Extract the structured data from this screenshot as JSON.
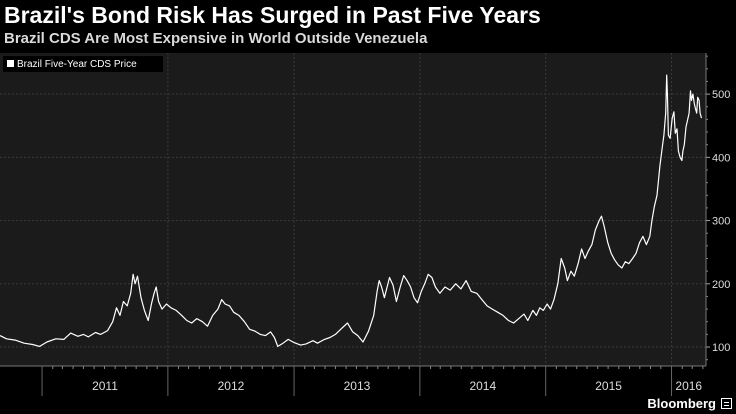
{
  "header": {
    "title": "Brazil's Bond Risk Has Surged in Past Five Years",
    "subtitle": "Brazil CDS Are Most Expensive in World Outside Venezuela"
  },
  "footer": {
    "brand": "Bloomberg"
  },
  "colors": {
    "background": "#000000",
    "plot_background": "#1b1b1b",
    "line": "#ffffff",
    "grid": "#3a3a3a",
    "axis_text": "#dddddd"
  },
  "chart_data": {
    "type": "line",
    "title": "Brazil's Bond Risk Has Surged in Past Five Years",
    "subtitle": "Brazil CDS Are Most Expensive in World Outside Venezuela",
    "legend": {
      "placement": "top-left",
      "entries": [
        "Brazil Five-Year CDS Price"
      ]
    },
    "xlim": [
      "2010-09-01",
      "2016-04-10"
    ],
    "ylim": [
      70,
      565
    ],
    "y_ticks": [
      100,
      200,
      300,
      400,
      500
    ],
    "x_ticks": [
      "2011",
      "2012",
      "2013",
      "2014",
      "2015",
      "2016"
    ],
    "grid": true,
    "series": [
      {
        "name": "Brazil Five-Year CDS Price",
        "points": [
          [
            "2010-09-01",
            118
          ],
          [
            "2010-09-20",
            113
          ],
          [
            "2010-10-15",
            111
          ],
          [
            "2010-11-10",
            106
          ],
          [
            "2010-12-05",
            104
          ],
          [
            "2010-12-25",
            101
          ],
          [
            "2011-01-15",
            108
          ],
          [
            "2011-02-10",
            113
          ],
          [
            "2011-03-05",
            112
          ],
          [
            "2011-03-25",
            122
          ],
          [
            "2011-04-15",
            117
          ],
          [
            "2011-05-01",
            120
          ],
          [
            "2011-05-15",
            116
          ],
          [
            "2011-06-05",
            123
          ],
          [
            "2011-06-20",
            120
          ],
          [
            "2011-07-10",
            126
          ],
          [
            "2011-07-25",
            140
          ],
          [
            "2011-08-05",
            162
          ],
          [
            "2011-08-15",
            150
          ],
          [
            "2011-08-25",
            172
          ],
          [
            "2011-09-05",
            165
          ],
          [
            "2011-09-15",
            185
          ],
          [
            "2011-09-22",
            215
          ],
          [
            "2011-09-28",
            200
          ],
          [
            "2011-10-05",
            212
          ],
          [
            "2011-10-15",
            178
          ],
          [
            "2011-10-25",
            158
          ],
          [
            "2011-11-05",
            142
          ],
          [
            "2011-11-15",
            170
          ],
          [
            "2011-11-22",
            185
          ],
          [
            "2011-11-28",
            195
          ],
          [
            "2011-12-05",
            172
          ],
          [
            "2011-12-15",
            160
          ],
          [
            "2011-12-28",
            168
          ],
          [
            "2012-01-10",
            162
          ],
          [
            "2012-01-25",
            158
          ],
          [
            "2012-02-10",
            150
          ],
          [
            "2012-02-25",
            142
          ],
          [
            "2012-03-10",
            138
          ],
          [
            "2012-03-25",
            145
          ],
          [
            "2012-04-10",
            140
          ],
          [
            "2012-04-25",
            133
          ],
          [
            "2012-05-10",
            150
          ],
          [
            "2012-05-25",
            160
          ],
          [
            "2012-06-05",
            175
          ],
          [
            "2012-06-15",
            168
          ],
          [
            "2012-06-28",
            165
          ],
          [
            "2012-07-10",
            155
          ],
          [
            "2012-07-25",
            150
          ],
          [
            "2012-08-10",
            140
          ],
          [
            "2012-08-25",
            128
          ],
          [
            "2012-09-10",
            125
          ],
          [
            "2012-09-25",
            120
          ],
          [
            "2012-10-10",
            118
          ],
          [
            "2012-10-25",
            124
          ],
          [
            "2012-11-05",
            115
          ],
          [
            "2012-11-15",
            101
          ],
          [
            "2012-11-30",
            106
          ],
          [
            "2012-12-15",
            112
          ],
          [
            "2013-01-01",
            107
          ],
          [
            "2013-01-20",
            103
          ],
          [
            "2013-02-05",
            105
          ],
          [
            "2013-02-25",
            110
          ],
          [
            "2013-03-10",
            106
          ],
          [
            "2013-03-30",
            112
          ],
          [
            "2013-04-15",
            115
          ],
          [
            "2013-05-01",
            120
          ],
          [
            "2013-05-20",
            130
          ],
          [
            "2013-06-05",
            138
          ],
          [
            "2013-06-20",
            124
          ],
          [
            "2013-07-05",
            118
          ],
          [
            "2013-07-20",
            108
          ],
          [
            "2013-08-05",
            125
          ],
          [
            "2013-08-20",
            150
          ],
          [
            "2013-08-30",
            188
          ],
          [
            "2013-09-05",
            205
          ],
          [
            "2013-09-12",
            195
          ],
          [
            "2013-09-20",
            178
          ],
          [
            "2013-10-05",
            210
          ],
          [
            "2013-10-15",
            198
          ],
          [
            "2013-10-25",
            172
          ],
          [
            "2013-11-05",
            195
          ],
          [
            "2013-11-15",
            213
          ],
          [
            "2013-11-25",
            205
          ],
          [
            "2013-12-05",
            195
          ],
          [
            "2013-12-15",
            178
          ],
          [
            "2013-12-25",
            170
          ],
          [
            "2014-01-05",
            188
          ],
          [
            "2014-01-15",
            200
          ],
          [
            "2014-01-25",
            215
          ],
          [
            "2014-02-05",
            210
          ],
          [
            "2014-02-15",
            195
          ],
          [
            "2014-02-28",
            185
          ],
          [
            "2014-03-15",
            195
          ],
          [
            "2014-03-30",
            190
          ],
          [
            "2014-04-15",
            200
          ],
          [
            "2014-04-30",
            192
          ],
          [
            "2014-05-15",
            205
          ],
          [
            "2014-05-30",
            188
          ],
          [
            "2014-06-15",
            185
          ],
          [
            "2014-06-30",
            175
          ],
          [
            "2014-07-15",
            165
          ],
          [
            "2014-07-30",
            160
          ],
          [
            "2014-08-15",
            155
          ],
          [
            "2014-08-30",
            150
          ],
          [
            "2014-09-15",
            142
          ],
          [
            "2014-09-30",
            138
          ],
          [
            "2014-10-15",
            145
          ],
          [
            "2014-10-30",
            152
          ],
          [
            "2014-11-10",
            142
          ],
          [
            "2014-11-25",
            158
          ],
          [
            "2014-12-05",
            150
          ],
          [
            "2014-12-15",
            162
          ],
          [
            "2014-12-25",
            158
          ],
          [
            "2015-01-05",
            168
          ],
          [
            "2015-01-15",
            160
          ],
          [
            "2015-01-25",
            175
          ],
          [
            "2015-02-05",
            200
          ],
          [
            "2015-02-15",
            240
          ],
          [
            "2015-02-25",
            225
          ],
          [
            "2015-03-05",
            205
          ],
          [
            "2015-03-15",
            220
          ],
          [
            "2015-03-25",
            212
          ],
          [
            "2015-04-05",
            232
          ],
          [
            "2015-04-15",
            255
          ],
          [
            "2015-04-25",
            240
          ],
          [
            "2015-05-05",
            252
          ],
          [
            "2015-05-15",
            262
          ],
          [
            "2015-05-25",
            285
          ],
          [
            "2015-06-05",
            300
          ],
          [
            "2015-06-12",
            307
          ],
          [
            "2015-06-20",
            290
          ],
          [
            "2015-06-30",
            265
          ],
          [
            "2015-07-10",
            248
          ],
          [
            "2015-07-20",
            238
          ],
          [
            "2015-07-30",
            230
          ],
          [
            "2015-08-10",
            225
          ],
          [
            "2015-08-20",
            235
          ],
          [
            "2015-08-30",
            232
          ],
          [
            "2015-09-10",
            240
          ],
          [
            "2015-09-20",
            248
          ],
          [
            "2015-09-30",
            265
          ],
          [
            "2015-10-10",
            275
          ],
          [
            "2015-10-20",
            262
          ],
          [
            "2015-10-30",
            275
          ],
          [
            "2015-11-05",
            300
          ],
          [
            "2015-11-12",
            322
          ],
          [
            "2015-11-20",
            340
          ],
          [
            "2015-11-28",
            385
          ],
          [
            "2015-12-05",
            415
          ],
          [
            "2015-12-10",
            435
          ],
          [
            "2015-12-15",
            470
          ],
          [
            "2015-12-18",
            530
          ],
          [
            "2015-12-20",
            500
          ],
          [
            "2015-12-23",
            435
          ],
          [
            "2015-12-28",
            430
          ],
          [
            "2016-01-03",
            462
          ],
          [
            "2016-01-08",
            472
          ],
          [
            "2016-01-12",
            438
          ],
          [
            "2016-01-17",
            445
          ],
          [
            "2016-01-21",
            410
          ],
          [
            "2016-01-26",
            400
          ],
          [
            "2016-01-31",
            395
          ],
          [
            "2016-02-03",
            410
          ],
          [
            "2016-02-07",
            420
          ],
          [
            "2016-02-12",
            448
          ],
          [
            "2016-02-16",
            458
          ],
          [
            "2016-02-21",
            470
          ],
          [
            "2016-02-25",
            505
          ],
          [
            "2016-02-28",
            490
          ],
          [
            "2016-03-03",
            500
          ],
          [
            "2016-03-07",
            485
          ],
          [
            "2016-03-10",
            478
          ],
          [
            "2016-03-14",
            470
          ],
          [
            "2016-03-17",
            495
          ],
          [
            "2016-03-21",
            490
          ],
          [
            "2016-03-24",
            470
          ],
          [
            "2016-03-28",
            462
          ]
        ]
      }
    ]
  }
}
